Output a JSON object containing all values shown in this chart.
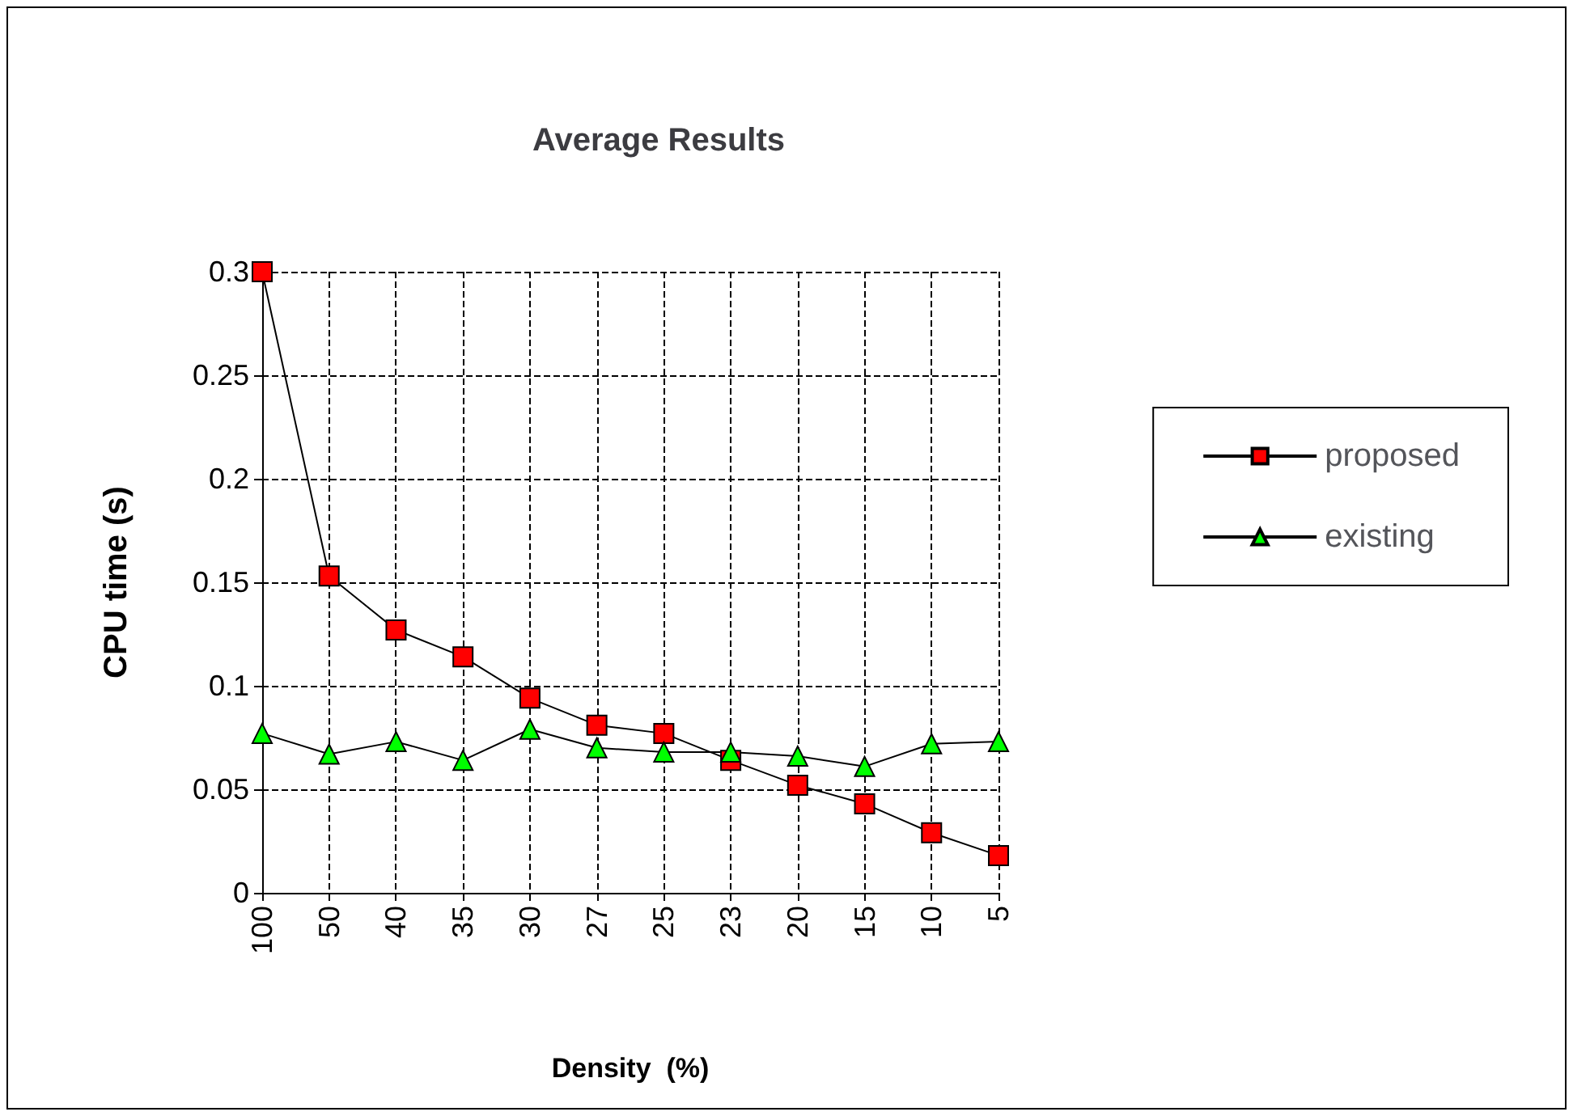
{
  "chart_data": {
    "type": "line",
    "title": "Average Results",
    "xlabel": "Density  (%)",
    "ylabel": "CPU time (s)",
    "categories": [
      "100",
      "50",
      "40",
      "35",
      "30",
      "27",
      "25",
      "23",
      "20",
      "15",
      "10",
      "5"
    ],
    "series": [
      {
        "name": "proposed",
        "color": "#ff0000",
        "marker": "square",
        "values": [
          0.3,
          0.153,
          0.127,
          0.114,
          0.094,
          0.081,
          0.077,
          0.064,
          0.052,
          0.043,
          0.029,
          0.018
        ]
      },
      {
        "name": "existing",
        "color": "#00ff00",
        "marker": "triangle",
        "values": [
          0.077,
          0.067,
          0.073,
          0.064,
          0.079,
          0.07,
          0.068,
          0.068,
          0.066,
          0.061,
          0.072,
          0.073
        ]
      }
    ],
    "ylim": [
      0,
      0.3
    ],
    "yticks": [
      0,
      0.05,
      0.1,
      0.15,
      0.2,
      0.25,
      0.3
    ],
    "grid": true,
    "legend": "right"
  }
}
